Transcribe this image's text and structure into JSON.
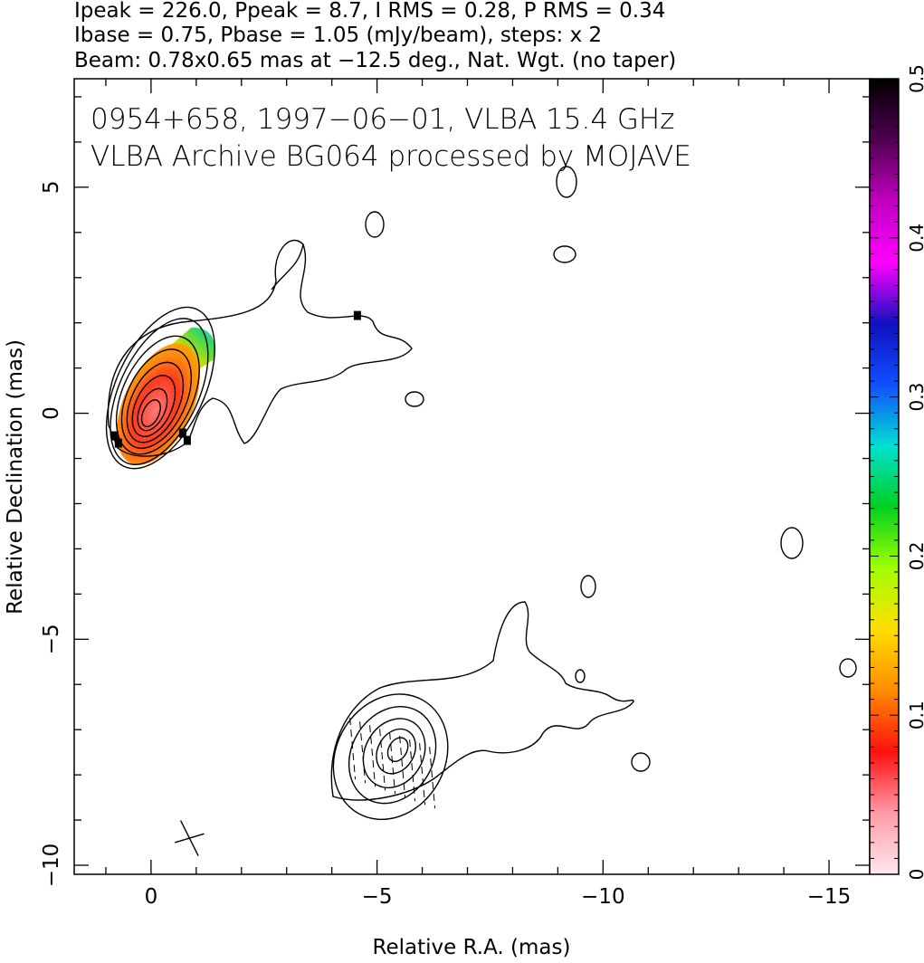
{
  "header": {
    "line1": "Ipeak = 226.0, Ppeak = 8.7, I RMS = 0.28, P RMS = 0.34",
    "line2": "Ibase = 0.75, Pbase = 1.05 (mJy/beam), steps: x 2",
    "line3": "Beam: 0.78x0.65 mas at −12.5 deg., Nat. Wgt. (no taper)"
  },
  "plot_labels": {
    "line1": "0954+658, 1997−06−01, VLBA 15.4 GHz",
    "line2": "VLBA Archive BG064 processed by MOJAVE"
  },
  "chart_data": {
    "type": "contour",
    "xlabel": "Relative R.A. (mas)",
    "ylabel": "Relative Declination (mas)",
    "xlim": [
      1.7,
      -15.9
    ],
    "ylim": [
      -10.2,
      7.4
    ],
    "x_ticks": [
      0,
      -5,
      -10,
      -15
    ],
    "x_tick_labels": [
      "0",
      "−5",
      "−10",
      "−15"
    ],
    "y_ticks": [
      5,
      0,
      -5,
      -10
    ],
    "y_tick_labels": [
      "5",
      "0",
      "−5",
      "−10"
    ],
    "colorbar": {
      "range": [
        0,
        0.5
      ],
      "ticks": [
        0,
        0.1,
        0.2,
        0.3,
        0.4,
        0.5
      ],
      "tick_labels": [
        "0",
        "0.1",
        "0.2",
        "0.3",
        "0.4",
        "0.5"
      ],
      "colors": [
        "#ffe8ec",
        "#ff9aa8",
        "#ff1010",
        "#ff8c00",
        "#ffdd00",
        "#a0ff00",
        "#00d020",
        "#00e0d0",
        "#1050ff",
        "#1010c0",
        "#ff00ff",
        "#c000c0",
        "#500050",
        "#000000"
      ]
    },
    "core": {
      "x": 0,
      "y": 0,
      "levels_major_mas": [
        0.35,
        0.55,
        0.8,
        1.05,
        1.3,
        1.55,
        1.75,
        1.95
      ],
      "position_angle_deg": -25
    },
    "lower_component": {
      "x": -5.3,
      "y": -7.6
    },
    "beam": {
      "x": -0.85,
      "y": -9.4,
      "major_mas": 0.78,
      "minor_mas": 0.65,
      "pa_deg": -12.5
    }
  }
}
